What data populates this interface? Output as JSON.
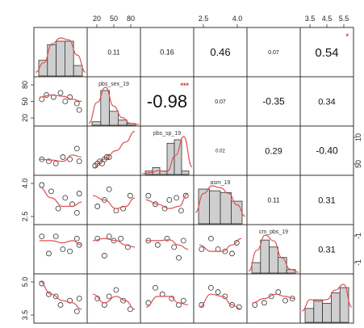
{
  "chart_data": {
    "type": "scatter-matrix",
    "variables": [
      {
        "name": "",
        "ticks_top": [],
        "ticks_left": [],
        "ticks_right": []
      },
      {
        "name": "pbs_sex_19",
        "ticks_top": [
          "20",
          "50",
          "80"
        ],
        "ticks_left": [
          "20",
          "50",
          "80"
        ],
        "ticks_right": []
      },
      {
        "name": "pbs_sp_19",
        "ticks_top": [],
        "ticks_left": [],
        "ticks_right": [
          "50",
          "10"
        ]
      },
      {
        "name": "asm_19",
        "ticks_top": [
          "2.5",
          "4.0"
        ],
        "ticks_left": [
          "2.5",
          "4.0"
        ],
        "ticks_right": []
      },
      {
        "name": "cm_pbs_19",
        "ticks_top": [],
        "ticks_left": [],
        "ticks_right": [
          "-1",
          "-1"
        ]
      },
      {
        "name": "",
        "ticks_top": [
          "3.5",
          "4.5",
          "5.5"
        ],
        "ticks_left": [
          "3.5",
          "5.0"
        ],
        "ticks_right": []
      }
    ],
    "correlations": [
      {
        "row": 0,
        "col": 1,
        "value": "0.11",
        "stars": ""
      },
      {
        "row": 0,
        "col": 2,
        "value": "0.16",
        "stars": ""
      },
      {
        "row": 0,
        "col": 3,
        "value": "0.46",
        "stars": ""
      },
      {
        "row": 0,
        "col": 4,
        "value": "0.07",
        "stars": ""
      },
      {
        "row": 0,
        "col": 5,
        "value": "0.54",
        "stars": "*"
      },
      {
        "row": 1,
        "col": 2,
        "value": "-0.98",
        "stars": "***"
      },
      {
        "row": 1,
        "col": 3,
        "value": "0.07",
        "stars": ""
      },
      {
        "row": 1,
        "col": 4,
        "value": "-0.35",
        "stars": ""
      },
      {
        "row": 1,
        "col": 5,
        "value": "0.34",
        "stars": ""
      },
      {
        "row": 2,
        "col": 3,
        "value": "0.02",
        "stars": ""
      },
      {
        "row": 2,
        "col": 4,
        "value": "0.29",
        "stars": ""
      },
      {
        "row": 2,
        "col": 5,
        "value": "-0.40",
        "stars": ""
      },
      {
        "row": 3,
        "col": 4,
        "value": "0.11",
        "stars": ""
      },
      {
        "row": 3,
        "col": 5,
        "value": "0.31",
        "stars": ""
      },
      {
        "row": 4,
        "col": 5,
        "value": "0.31",
        "stars": ""
      }
    ],
    "histograms": [
      {
        "bars": [
          0.45,
          0.9,
          1.0,
          1.0,
          0.3
        ],
        "density": [
          0.1,
          0.35,
          0.85,
          1.0,
          0.95,
          0.55,
          0.1
        ]
      },
      {
        "bars": [
          0.1,
          1.0,
          0.4,
          0.15,
          0.05
        ],
        "density": [
          0.05,
          0.6,
          1.0,
          0.5,
          0.2,
          0.05,
          0.02
        ]
      },
      {
        "bars": [
          0.1,
          0.2,
          0.1,
          0.9,
          1.0,
          0.1
        ],
        "density": [
          0.02,
          0.05,
          0.1,
          0.08,
          0.5,
          1.0,
          0.2
        ]
      },
      {
        "bars": [
          1.0,
          0.95,
          0.9,
          0.65
        ],
        "density": [
          0.3,
          0.8,
          1.0,
          0.95,
          0.8,
          0.5,
          0.2
        ]
      },
      {
        "bars": [
          0.3,
          0.95,
          0.75,
          0.45,
          0.1
        ],
        "density": [
          0.05,
          0.6,
          1.0,
          0.85,
          0.4,
          0.1,
          0.02
        ]
      },
      {
        "bars": [
          0.4,
          0.65,
          0.55,
          0.85,
          1.0
        ],
        "density": [
          0.3,
          0.6,
          0.55,
          0.6,
          0.85,
          1.0,
          0.4
        ]
      }
    ],
    "scatter": [
      {
        "row": 1,
        "col": 0,
        "points": [
          [
            0.1,
            0.55
          ],
          [
            0.2,
            0.65
          ],
          [
            0.35,
            0.6
          ],
          [
            0.5,
            0.7
          ],
          [
            0.6,
            0.5
          ],
          [
            0.7,
            0.6
          ],
          [
            0.85,
            0.45
          ],
          [
            0.9,
            0.3
          ]
        ],
        "fit": [
          [
            0.05,
            0.6
          ],
          [
            0.3,
            0.65
          ],
          [
            0.55,
            0.62
          ],
          [
            0.75,
            0.55
          ],
          [
            0.95,
            0.5
          ]
        ]
      },
      {
        "row": 2,
        "col": 0,
        "points": [
          [
            0.1,
            0.3
          ],
          [
            0.25,
            0.25
          ],
          [
            0.4,
            0.2
          ],
          [
            0.55,
            0.35
          ],
          [
            0.7,
            0.3
          ],
          [
            0.85,
            0.55
          ],
          [
            0.9,
            0.25
          ]
        ],
        "fit": [
          [
            0.05,
            0.3
          ],
          [
            0.3,
            0.28
          ],
          [
            0.55,
            0.25
          ],
          [
            0.75,
            0.4
          ],
          [
            0.95,
            0.35
          ]
        ]
      },
      {
        "row": 2,
        "col": 1,
        "points": [
          [
            0.1,
            0.15
          ],
          [
            0.15,
            0.2
          ],
          [
            0.2,
            0.25
          ],
          [
            0.25,
            0.2
          ],
          [
            0.3,
            0.3
          ],
          [
            0.35,
            0.35
          ],
          [
            0.4,
            0.35
          ]
        ],
        "fit": [
          [
            0.05,
            0.1
          ],
          [
            0.3,
            0.3
          ],
          [
            0.55,
            0.5
          ],
          [
            0.75,
            0.7
          ],
          [
            0.95,
            0.95
          ]
        ]
      },
      {
        "row": 3,
        "col": 0,
        "points": [
          [
            0.1,
            0.85
          ],
          [
            0.3,
            0.7
          ],
          [
            0.45,
            0.3
          ],
          [
            0.6,
            0.55
          ],
          [
            0.75,
            0.4
          ],
          [
            0.85,
            0.2
          ],
          [
            0.9,
            0.65
          ]
        ],
        "fit": [
          [
            0.05,
            0.8
          ],
          [
            0.3,
            0.55
          ],
          [
            0.55,
            0.35
          ],
          [
            0.75,
            0.35
          ],
          [
            0.95,
            0.45
          ]
        ]
      },
      {
        "row": 3,
        "col": 1,
        "points": [
          [
            0.15,
            0.35
          ],
          [
            0.3,
            0.5
          ],
          [
            0.4,
            0.75
          ],
          [
            0.55,
            0.25
          ],
          [
            0.7,
            0.3
          ],
          [
            0.85,
            0.6
          ]
        ],
        "fit": [
          [
            0.05,
            0.6
          ],
          [
            0.3,
            0.5
          ],
          [
            0.55,
            0.3
          ],
          [
            0.75,
            0.35
          ],
          [
            0.95,
            0.55
          ]
        ]
      },
      {
        "row": 3,
        "col": 2,
        "points": [
          [
            0.1,
            0.6
          ],
          [
            0.25,
            0.4
          ],
          [
            0.45,
            0.3
          ],
          [
            0.55,
            0.5
          ],
          [
            0.7,
            0.55
          ],
          [
            0.8,
            0.25
          ],
          [
            0.9,
            0.6
          ]
        ],
        "fit": [
          [
            0.05,
            0.5
          ],
          [
            0.3,
            0.4
          ],
          [
            0.55,
            0.3
          ],
          [
            0.75,
            0.35
          ],
          [
            0.95,
            0.65
          ]
        ]
      },
      {
        "row": 4,
        "col": 0,
        "points": [
          [
            0.1,
            0.8
          ],
          [
            0.25,
            0.4
          ],
          [
            0.4,
            0.8
          ],
          [
            0.55,
            0.5
          ],
          [
            0.7,
            0.45
          ],
          [
            0.85,
            0.75
          ],
          [
            0.9,
            0.6
          ]
        ],
        "fit": [
          [
            0.05,
            0.7
          ],
          [
            0.3,
            0.7
          ],
          [
            0.55,
            0.65
          ],
          [
            0.75,
            0.7
          ],
          [
            0.95,
            0.6
          ]
        ]
      },
      {
        "row": 4,
        "col": 1,
        "points": [
          [
            0.15,
            0.75
          ],
          [
            0.3,
            0.35
          ],
          [
            0.4,
            0.8
          ],
          [
            0.5,
            0.7
          ],
          [
            0.65,
            0.75
          ],
          [
            0.8,
            0.55
          ]
        ],
        "fit": [
          [
            0.05,
            0.7
          ],
          [
            0.3,
            0.75
          ],
          [
            0.55,
            0.7
          ],
          [
            0.75,
            0.6
          ],
          [
            0.95,
            0.55
          ]
        ]
      },
      {
        "row": 4,
        "col": 2,
        "points": [
          [
            0.1,
            0.7
          ],
          [
            0.3,
            0.6
          ],
          [
            0.5,
            0.75
          ],
          [
            0.65,
            0.55
          ],
          [
            0.75,
            0.3
          ],
          [
            0.85,
            0.7
          ]
        ],
        "fit": [
          [
            0.05,
            0.7
          ],
          [
            0.3,
            0.7
          ],
          [
            0.55,
            0.72
          ],
          [
            0.75,
            0.6
          ],
          [
            0.95,
            0.5
          ]
        ]
      },
      {
        "row": 4,
        "col": 3,
        "points": [
          [
            0.1,
            0.5
          ],
          [
            0.3,
            0.75
          ],
          [
            0.45,
            0.5
          ],
          [
            0.6,
            0.45
          ],
          [
            0.75,
            0.4
          ],
          [
            0.85,
            0.65
          ]
        ],
        "fit": [
          [
            0.05,
            0.6
          ],
          [
            0.3,
            0.45
          ],
          [
            0.55,
            0.45
          ],
          [
            0.75,
            0.6
          ],
          [
            0.95,
            0.75
          ]
        ]
      },
      {
        "row": 5,
        "col": 0,
        "points": [
          [
            0.1,
            0.85
          ],
          [
            0.25,
            0.6
          ],
          [
            0.4,
            0.55
          ],
          [
            0.5,
            0.35
          ],
          [
            0.7,
            0.45
          ],
          [
            0.85,
            0.2
          ],
          [
            0.9,
            0.5
          ]
        ],
        "fit": [
          [
            0.05,
            0.9
          ],
          [
            0.3,
            0.6
          ],
          [
            0.55,
            0.45
          ],
          [
            0.75,
            0.4
          ],
          [
            0.95,
            0.25
          ]
        ]
      },
      {
        "row": 5,
        "col": 1,
        "points": [
          [
            0.15,
            0.5
          ],
          [
            0.3,
            0.35
          ],
          [
            0.4,
            0.55
          ],
          [
            0.55,
            0.7
          ],
          [
            0.7,
            0.45
          ],
          [
            0.85,
            0.25
          ]
        ],
        "fit": [
          [
            0.05,
            0.6
          ],
          [
            0.3,
            0.4
          ],
          [
            0.55,
            0.55
          ],
          [
            0.75,
            0.45
          ],
          [
            0.95,
            0.25
          ]
        ]
      },
      {
        "row": 5,
        "col": 2,
        "points": [
          [
            0.1,
            0.4
          ],
          [
            0.25,
            0.75
          ],
          [
            0.4,
            0.6
          ],
          [
            0.6,
            0.5
          ],
          [
            0.75,
            0.35
          ],
          [
            0.85,
            0.45
          ]
        ],
        "fit": [
          [
            0.05,
            0.3
          ],
          [
            0.3,
            0.55
          ],
          [
            0.55,
            0.55
          ],
          [
            0.75,
            0.4
          ],
          [
            0.95,
            0.35
          ]
        ]
      },
      {
        "row": 5,
        "col": 3,
        "points": [
          [
            0.1,
            0.35
          ],
          [
            0.3,
            0.75
          ],
          [
            0.45,
            0.65
          ],
          [
            0.6,
            0.55
          ],
          [
            0.75,
            0.35
          ],
          [
            0.9,
            0.3
          ]
        ],
        "fit": [
          [
            0.05,
            0.3
          ],
          [
            0.3,
            0.6
          ],
          [
            0.55,
            0.55
          ],
          [
            0.75,
            0.35
          ],
          [
            0.95,
            0.25
          ]
        ]
      },
      {
        "row": 5,
        "col": 4,
        "points": [
          [
            0.1,
            0.35
          ],
          [
            0.3,
            0.4
          ],
          [
            0.45,
            0.55
          ],
          [
            0.6,
            0.65
          ],
          [
            0.75,
            0.45
          ],
          [
            0.9,
            0.5
          ]
        ],
        "fit": [
          [
            0.05,
            0.4
          ],
          [
            0.3,
            0.5
          ],
          [
            0.55,
            0.6
          ],
          [
            0.75,
            0.55
          ],
          [
            0.95,
            0.5
          ]
        ]
      }
    ],
    "colors": {
      "bar_fill": "#cfcfcf",
      "fit_line": "#e05050",
      "stars": "#e03030",
      "axis": "#333333"
    }
  }
}
